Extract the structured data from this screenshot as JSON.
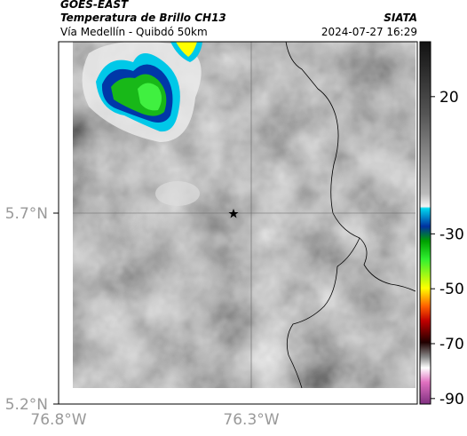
{
  "header": {
    "satellite": "GOES-EAST",
    "product": "Temperatura de Brillo CH13",
    "location": "Vía Medellín - Quibdó 50km",
    "source": "SIATA",
    "datetime": "2024-07-27 16:29"
  },
  "map": {
    "x_labels": [
      "76.8°W",
      "76.3°W"
    ],
    "y_labels": [
      "5.7°N",
      "5.2°N"
    ]
  },
  "colorbar": {
    "lim": [
      -92,
      40
    ],
    "ticks": [
      20,
      -30,
      -50,
      -70,
      -90
    ]
  }
}
